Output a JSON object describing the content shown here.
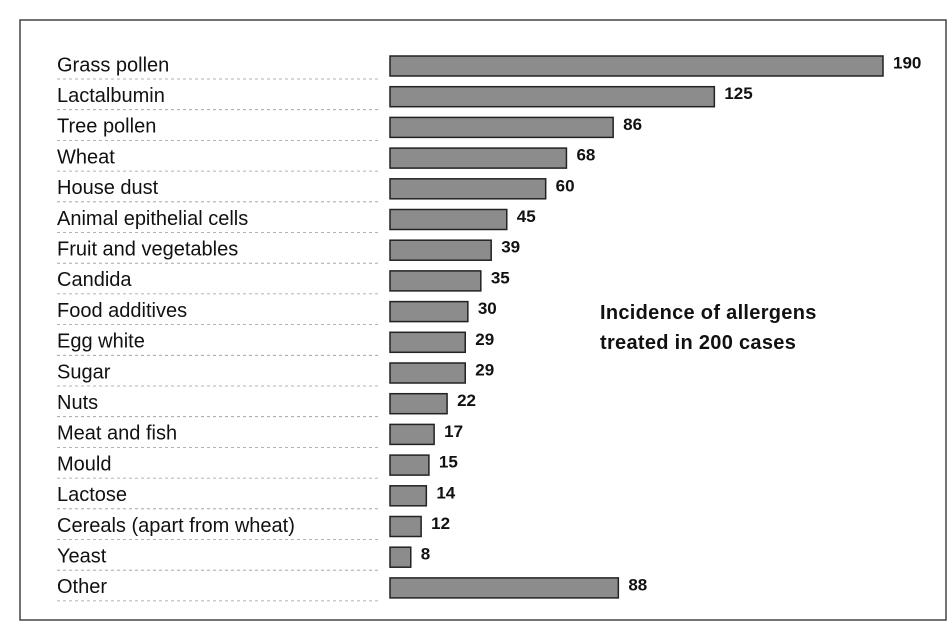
{
  "chart_data": {
    "type": "bar",
    "orientation": "horizontal",
    "title": "Incidence of allergens treated in 200 cases",
    "categories": [
      "Grass pollen",
      "Lactalbumin",
      "Tree pollen",
      "Wheat",
      "House dust",
      "Animal epithelial cells",
      "Fruit and vegetables",
      "Candida",
      "Food additives",
      "Egg white",
      "Sugar",
      "Nuts",
      "Meat and fish",
      "Mould",
      "Lactose",
      "Cereals (apart from wheat)",
      "Yeast",
      "Other"
    ],
    "values": [
      190,
      125,
      86,
      68,
      60,
      45,
      39,
      35,
      30,
      29,
      29,
      22,
      17,
      15,
      14,
      12,
      8,
      88
    ],
    "color": "#8c8c8c"
  }
}
